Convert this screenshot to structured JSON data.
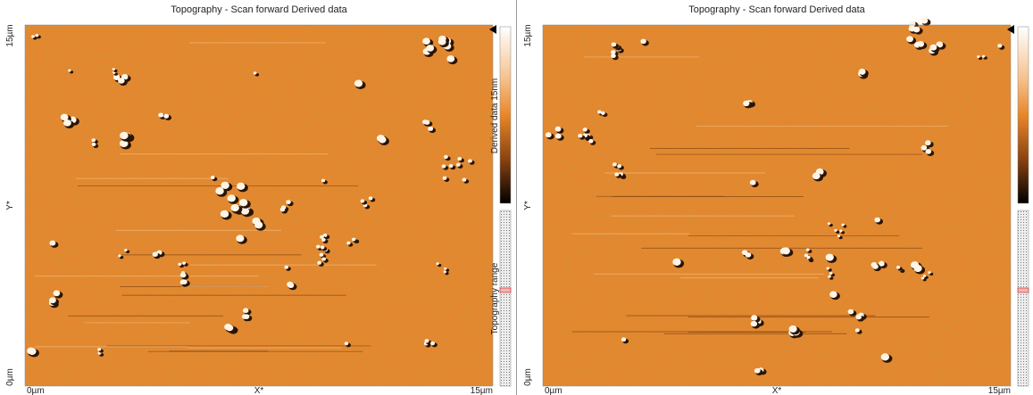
{
  "panels": [
    {
      "title": "Topography - Scan forward   Derived data",
      "y_labels": [
        "15µm",
        "Y*",
        "0µm"
      ],
      "x_labels": [
        "0µm",
        "X*",
        "15µm"
      ],
      "colorbar_label": "Derived data 15nm",
      "range_label": "Topography range"
    },
    {
      "title": "Topography - Scan forward   Derived data",
      "y_labels": [
        "15µm",
        "Y*",
        "0µm"
      ],
      "x_labels": [
        "0µm",
        "X*",
        "15µm"
      ]
    }
  ]
}
